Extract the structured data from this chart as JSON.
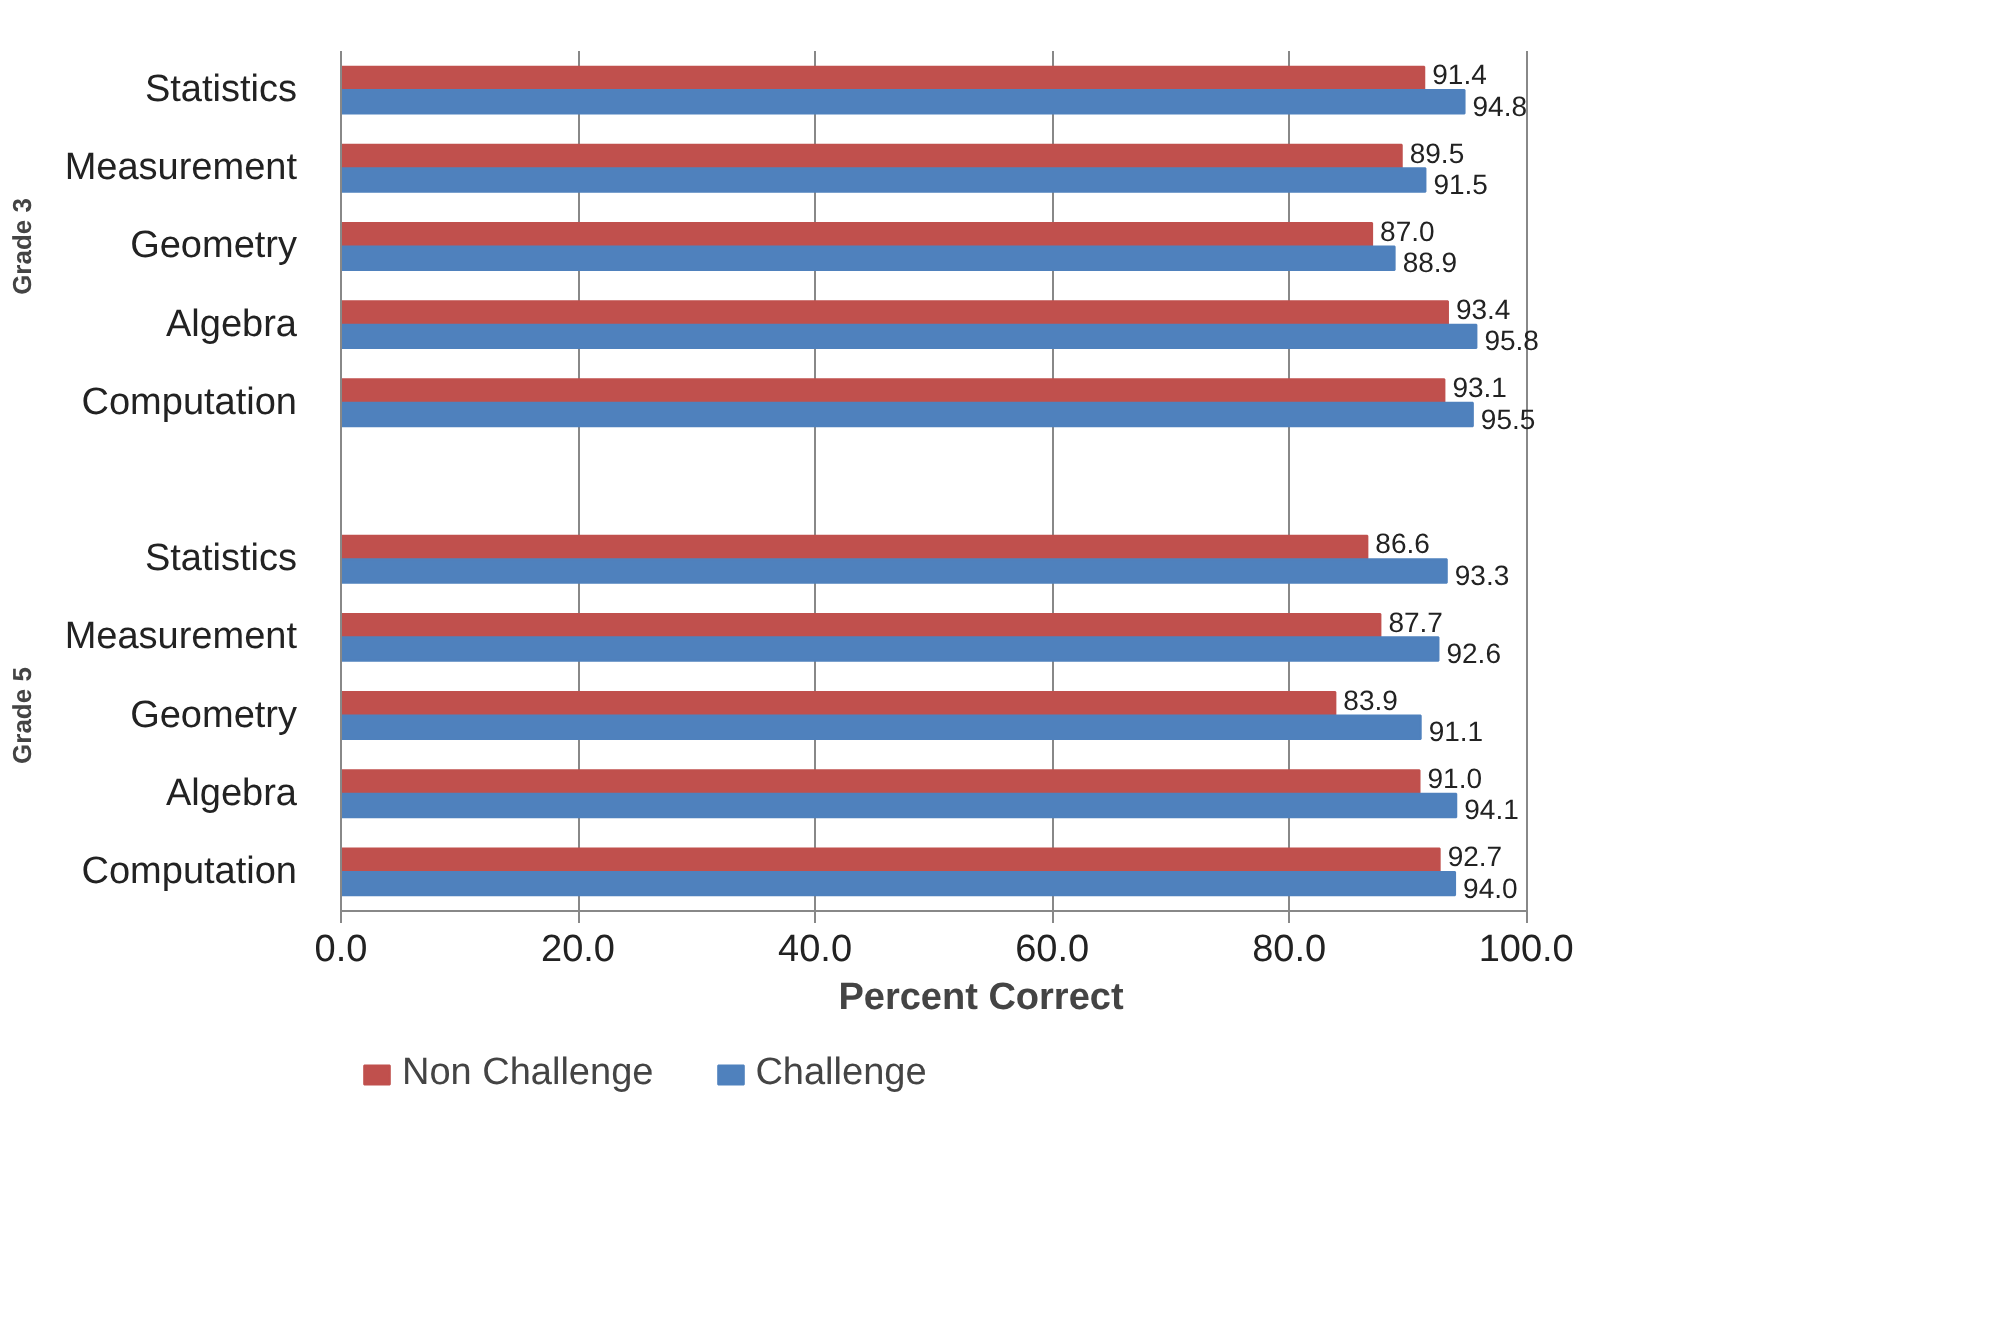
{
  "chart_data": {
    "type": "bar",
    "orientation": "horizontal",
    "xlabel": "Percent Correct",
    "categories": [
      "Statistics",
      "Measurement",
      "Geometry",
      "Algebra",
      "Computation",
      null,
      "Statistics",
      "Measurement",
      "Geometry",
      "Algebra",
      "Computation"
    ],
    "series": [
      {
        "name": "Non Challenge",
        "color": "#c0504d",
        "values": [
          91.4,
          89.5,
          87.0,
          93.4,
          93.1,
          null,
          86.6,
          87.7,
          83.9,
          91.0,
          92.7
        ],
        "value_labels": [
          "91.4",
          "89.5",
          "87.0",
          "93.4",
          "93.1",
          null,
          "86.6",
          "87.7",
          "83.9",
          "91.0",
          "92.7"
        ]
      },
      {
        "name": "Challenge",
        "color": "#4f81bd",
        "values": [
          94.8,
          91.5,
          88.9,
          95.8,
          95.5,
          null,
          93.3,
          92.6,
          91.1,
          94.1,
          94.0
        ],
        "value_labels": [
          "94.8",
          "91.5",
          "88.9",
          "95.8",
          "95.5",
          null,
          "93.3",
          "92.6",
          "91.1",
          "94.1",
          "94.0"
        ]
      }
    ],
    "annotations": [
      "Grade 3",
      "Grade 5"
    ],
    "xlim": [
      0,
      100
    ],
    "xticks": [
      {
        "value": 0,
        "label": "0.0"
      },
      {
        "value": 20,
        "label": "20.0"
      },
      {
        "value": 40,
        "label": "40.0"
      },
      {
        "value": 60,
        "label": "60.0"
      },
      {
        "value": 80,
        "label": "80.0"
      },
      {
        "value": 100,
        "label": "100.0"
      }
    ],
    "grid": "x",
    "legend": "bottom left"
  }
}
